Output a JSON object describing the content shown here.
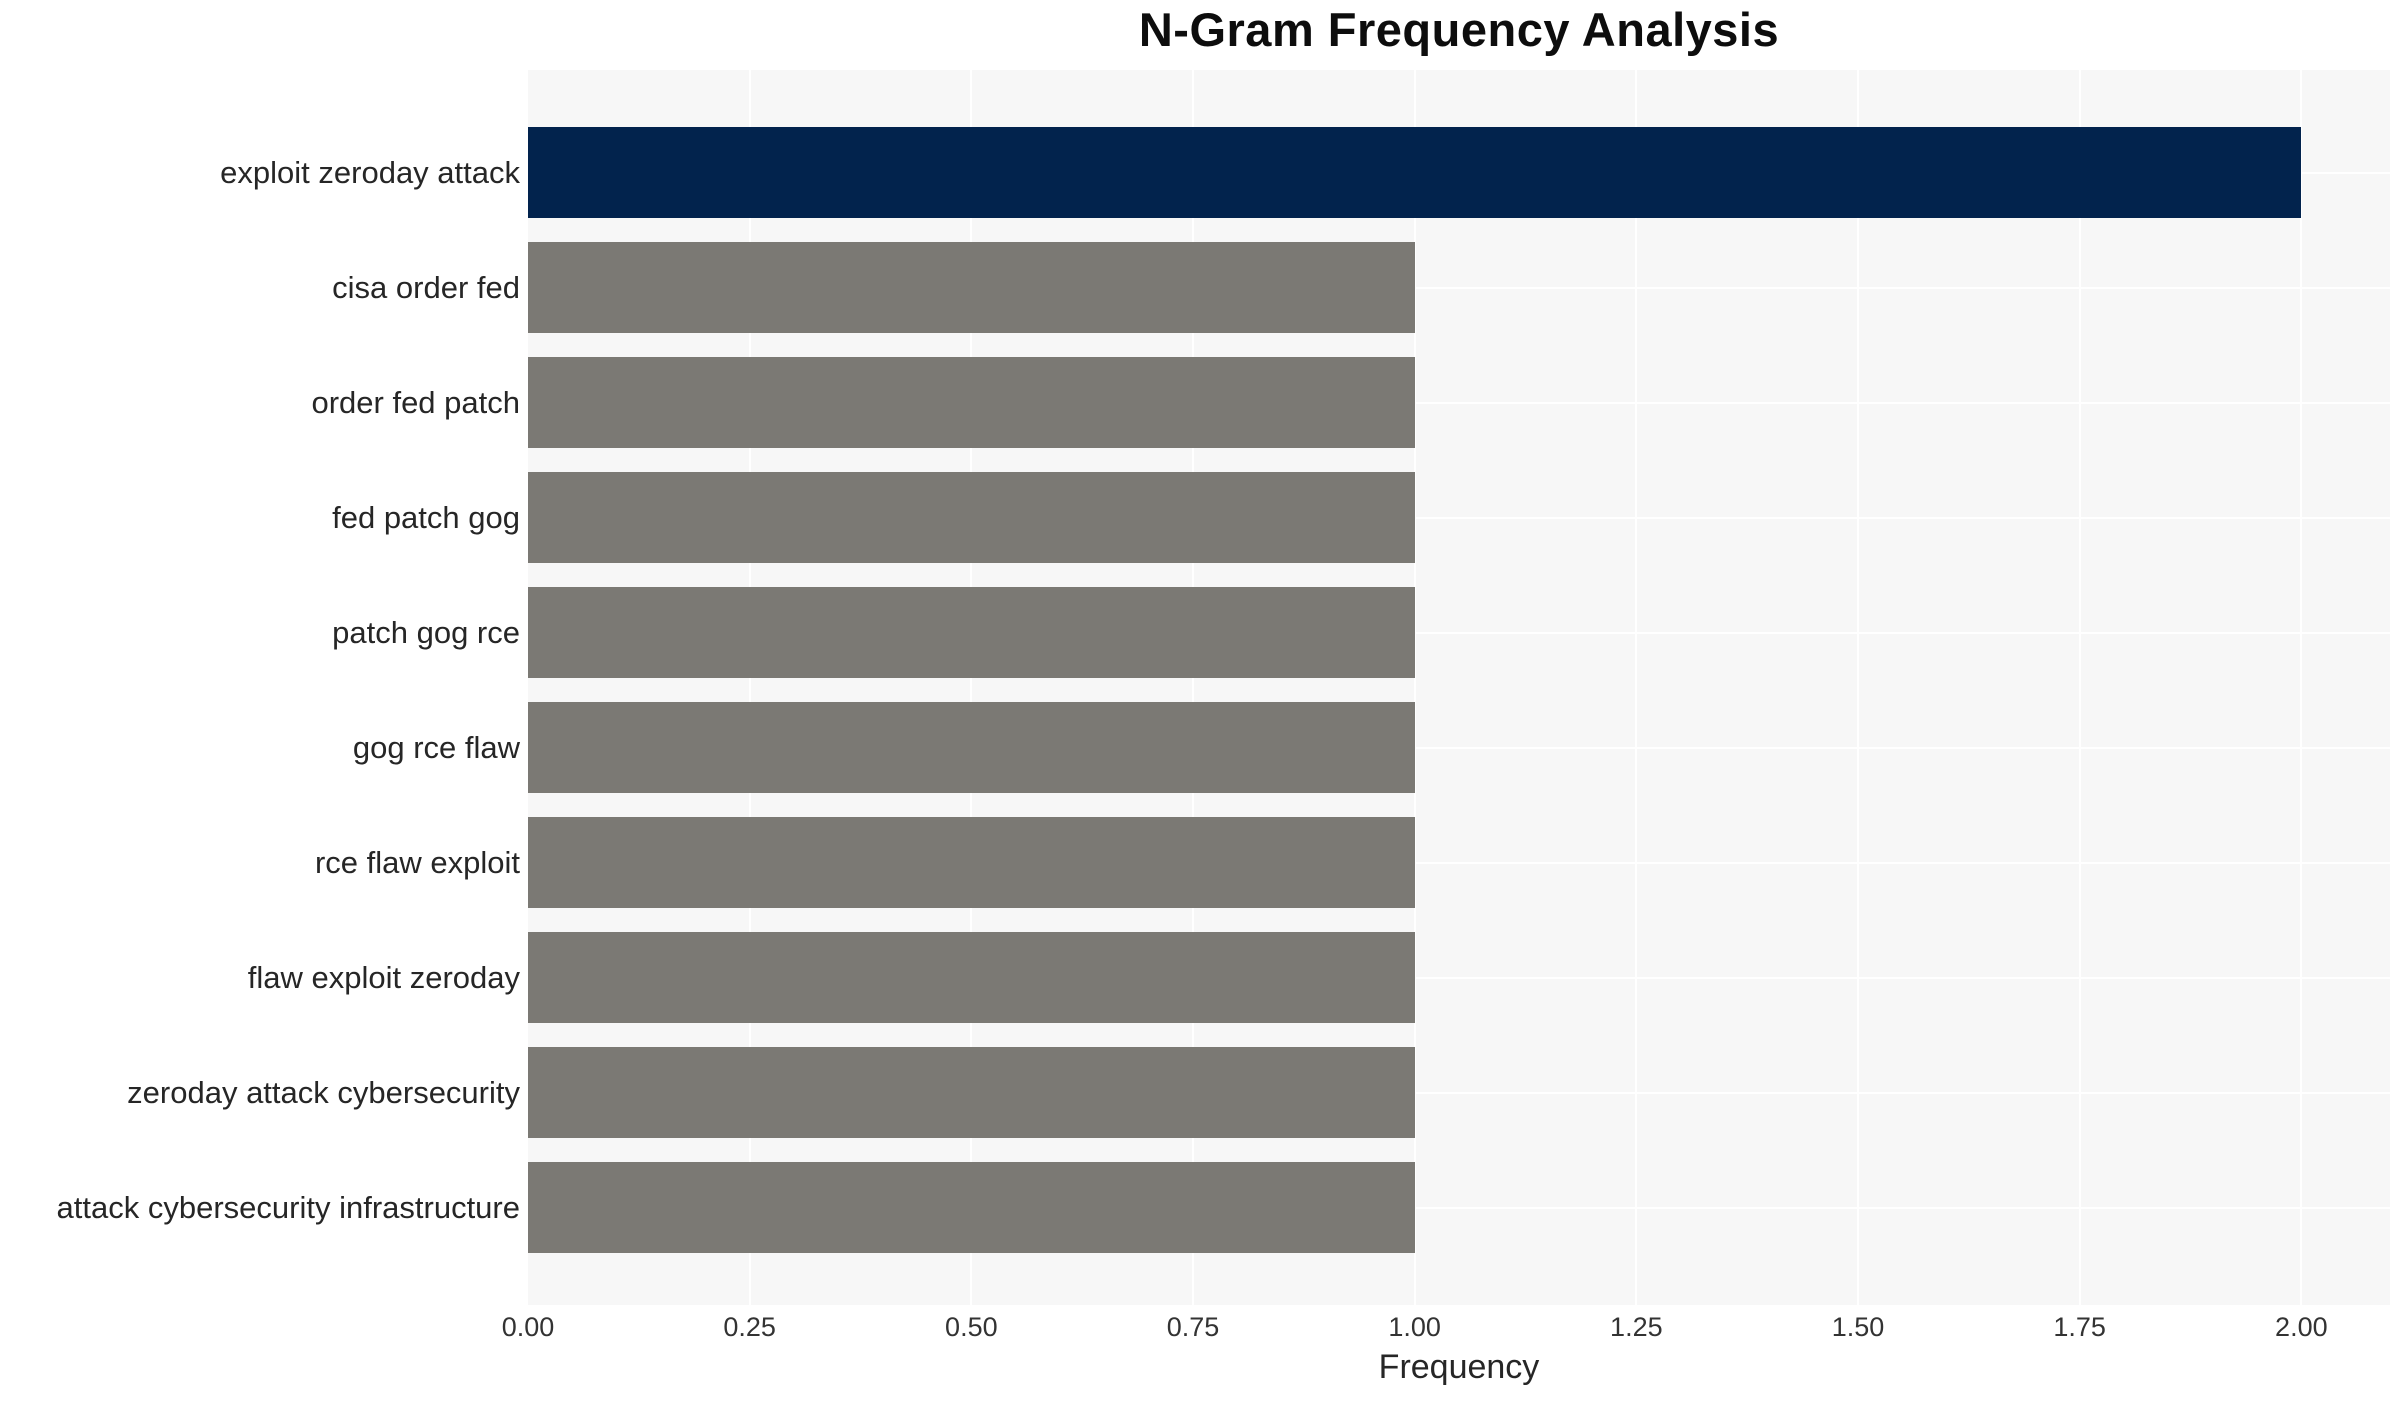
{
  "chart_data": {
    "type": "bar",
    "orientation": "horizontal",
    "title": "N-Gram Frequency Analysis",
    "xlabel": "Frequency",
    "ylabel": "",
    "categories": [
      "exploit zeroday attack",
      "cisa order fed",
      "order fed patch",
      "fed patch gog",
      "patch gog rce",
      "gog rce flaw",
      "rce flaw exploit",
      "flaw exploit zeroday",
      "zeroday attack cybersecurity",
      "attack cybersecurity infrastructure"
    ],
    "values": [
      2,
      1,
      1,
      1,
      1,
      1,
      1,
      1,
      1,
      1
    ],
    "bar_colors": [
      "#02234d",
      "#7b7974",
      "#7b7974",
      "#7b7974",
      "#7b7974",
      "#7b7974",
      "#7b7974",
      "#7b7974",
      "#7b7974",
      "#7b7974"
    ],
    "xlim": [
      0,
      2.1
    ],
    "xtick_values": [
      0,
      0.25,
      0.5,
      0.75,
      1.0,
      1.25,
      1.5,
      1.75,
      2.0
    ],
    "xtick_labels": [
      "0.00",
      "0.25",
      "0.50",
      "0.75",
      "1.00",
      "1.25",
      "1.50",
      "1.75",
      "2.00"
    ],
    "grid": "both",
    "legend": "none",
    "colors": {
      "highlight_bar": "#02234d",
      "default_bar": "#7b7974",
      "plot_background": "#f7f7f7",
      "gridline": "#ffffff",
      "title_text": "#0d0d0d",
      "tick_text": "#333333",
      "label_text": "#262626"
    }
  }
}
